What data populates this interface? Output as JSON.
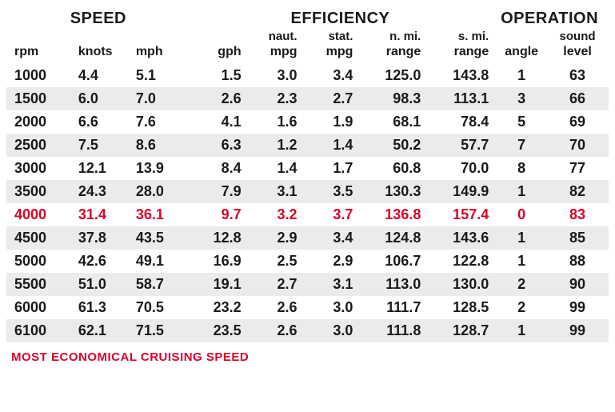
{
  "groupHeaders": {
    "speed": "SPEED",
    "efficiency": "EFFICIENCY",
    "operation": "OPERATION"
  },
  "subHeaders": {
    "rpm": "",
    "knots": "",
    "mph": "",
    "gph": "",
    "nmpg": "naut.",
    "smpg": "stat.",
    "nrng": "n. mi.",
    "srng": "s. mi.",
    "angle": "",
    "sound": "sound"
  },
  "columnHeaders": {
    "rpm": "rpm",
    "knots": "knots",
    "mph": "mph",
    "gph": "gph",
    "nmpg": "mpg",
    "smpg": "mpg",
    "nrng": "range",
    "srng": "range",
    "angle": "angle",
    "sound": "level"
  },
  "rows": [
    {
      "rpm": "1000",
      "knots": "4.4",
      "mph": "5.1",
      "gph": "1.5",
      "nmpg": "3.0",
      "smpg": "3.4",
      "nrng": "125.0",
      "srng": "143.8",
      "angle": "1",
      "sound": "63",
      "highlight": false
    },
    {
      "rpm": "1500",
      "knots": "6.0",
      "mph": "7.0",
      "gph": "2.6",
      "nmpg": "2.3",
      "smpg": "2.7",
      "nrng": "98.3",
      "srng": "113.1",
      "angle": "3",
      "sound": "66",
      "highlight": false
    },
    {
      "rpm": "2000",
      "knots": "6.6",
      "mph": "7.6",
      "gph": "4.1",
      "nmpg": "1.6",
      "smpg": "1.9",
      "nrng": "68.1",
      "srng": "78.4",
      "angle": "5",
      "sound": "69",
      "highlight": false
    },
    {
      "rpm": "2500",
      "knots": "7.5",
      "mph": "8.6",
      "gph": "6.3",
      "nmpg": "1.2",
      "smpg": "1.4",
      "nrng": "50.2",
      "srng": "57.7",
      "angle": "7",
      "sound": "70",
      "highlight": false
    },
    {
      "rpm": "3000",
      "knots": "12.1",
      "mph": "13.9",
      "gph": "8.4",
      "nmpg": "1.4",
      "smpg": "1.7",
      "nrng": "60.8",
      "srng": "70.0",
      "angle": "8",
      "sound": "77",
      "highlight": false
    },
    {
      "rpm": "3500",
      "knots": "24.3",
      "mph": "28.0",
      "gph": "7.9",
      "nmpg": "3.1",
      "smpg": "3.5",
      "nrng": "130.3",
      "srng": "149.9",
      "angle": "1",
      "sound": "82",
      "highlight": false
    },
    {
      "rpm": "4000",
      "knots": "31.4",
      "mph": "36.1",
      "gph": "9.7",
      "nmpg": "3.2",
      "smpg": "3.7",
      "nrng": "136.8",
      "srng": "157.4",
      "angle": "0",
      "sound": "83",
      "highlight": true
    },
    {
      "rpm": "4500",
      "knots": "37.8",
      "mph": "43.5",
      "gph": "12.8",
      "nmpg": "2.9",
      "smpg": "3.4",
      "nrng": "124.8",
      "srng": "143.6",
      "angle": "1",
      "sound": "85",
      "highlight": false
    },
    {
      "rpm": "5000",
      "knots": "42.6",
      "mph": "49.1",
      "gph": "16.9",
      "nmpg": "2.5",
      "smpg": "2.9",
      "nrng": "106.7",
      "srng": "122.8",
      "angle": "1",
      "sound": "88",
      "highlight": false
    },
    {
      "rpm": "5500",
      "knots": "51.0",
      "mph": "58.7",
      "gph": "19.1",
      "nmpg": "2.7",
      "smpg": "3.1",
      "nrng": "113.0",
      "srng": "130.0",
      "angle": "2",
      "sound": "90",
      "highlight": false
    },
    {
      "rpm": "6000",
      "knots": "61.3",
      "mph": "70.5",
      "gph": "23.2",
      "nmpg": "2.6",
      "smpg": "3.0",
      "nrng": "111.7",
      "srng": "128.5",
      "angle": "2",
      "sound": "99",
      "highlight": false
    },
    {
      "rpm": "6100",
      "knots": "62.1",
      "mph": "71.5",
      "gph": "23.5",
      "nmpg": "2.6",
      "smpg": "3.0",
      "nrng": "111.8",
      "srng": "128.7",
      "angle": "1",
      "sound": "99",
      "highlight": false
    }
  ],
  "footer": "MOST ECONOMICAL CRUISING SPEED",
  "colors": {
    "highlight": "#d90429",
    "text": "#1a1a1a",
    "rowOdd": "#ebebeb",
    "rowEven": "#ffffff",
    "background": "#ffffff"
  }
}
